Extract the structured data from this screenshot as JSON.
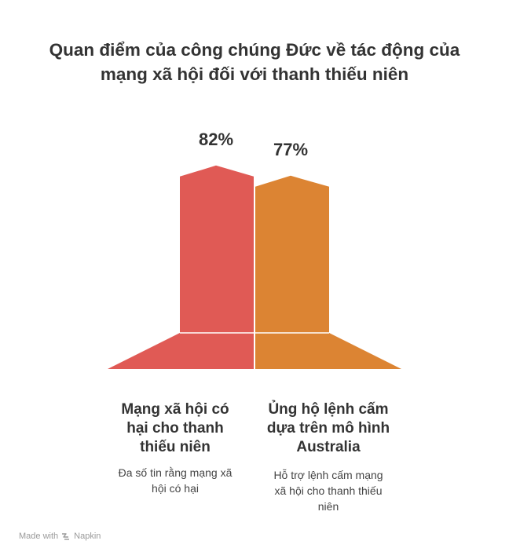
{
  "title_lines": [
    "Quan điểm của công chúng Đức về tác động của",
    "mạng xã hội đối với thanh thiếu niên"
  ],
  "items": [
    {
      "title_lines": [
        "Mạng xã hội có",
        "hại cho thanh",
        "thiếu niên"
      ],
      "desc_lines": [
        "Đa số tin rằng mạng xã",
        "hội có hại"
      ]
    },
    {
      "title_lines": [
        "Ủng hộ lệnh cấm",
        "dựa trên mô hình",
        "Australia"
      ],
      "desc_lines": [
        "Hỗ trợ lệnh cấm mạng",
        "xã hội cho thanh thiếu",
        "niên"
      ]
    }
  ],
  "chart_data": {
    "type": "bar",
    "categories": [
      "Mạng xã hội có hại cho thanh thiếu niên",
      "Ủng hộ lệnh cấm dựa trên mô hình Australia"
    ],
    "values": [
      82,
      77
    ],
    "value_labels": [
      "82%",
      "77%"
    ],
    "colors": [
      "#e05a55",
      "#dc8433"
    ],
    "legend": "none",
    "grid": false
  },
  "footer": {
    "made_with": "Made with",
    "brand": "Napkin"
  }
}
